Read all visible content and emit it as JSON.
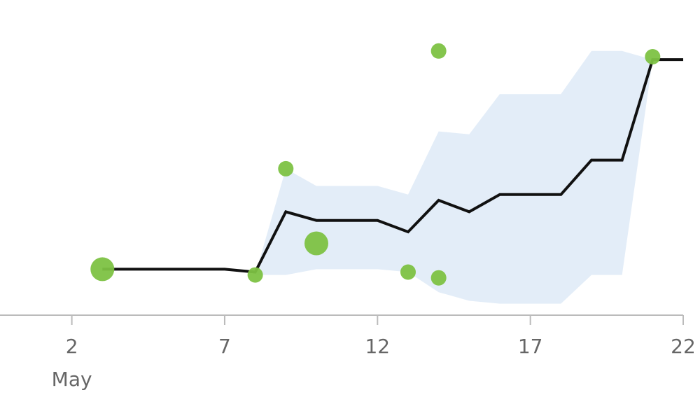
{
  "chart_data": {
    "type": "line",
    "xaxis": {
      "ticks": [
        {
          "value": 2,
          "label": "2"
        },
        {
          "value": 7,
          "label": "7"
        },
        {
          "value": 12,
          "label": "12"
        },
        {
          "value": 17,
          "label": "17"
        },
        {
          "value": 22,
          "label": "22"
        }
      ],
      "month_label": "May",
      "range": [
        -0.35,
        22
      ]
    },
    "yaxis": {
      "range": [
        0,
        100
      ]
    },
    "grid": false,
    "legend": "none",
    "colors": {
      "line": "#111111",
      "band": "#e3edf8",
      "points": "#7dc243",
      "axis": "#bbbbbb",
      "tick_text": "#666666"
    },
    "series": [
      {
        "type": "line",
        "x": [
          3,
          7,
          8,
          9,
          10,
          11,
          12,
          13,
          14,
          15,
          16,
          17,
          18,
          19,
          20,
          21,
          22
        ],
        "y": [
          16,
          16,
          15,
          36,
          33,
          33,
          33,
          29,
          40,
          36,
          42,
          42,
          42,
          54,
          54,
          89,
          89
        ]
      },
      {
        "type": "band",
        "x": [
          8,
          9,
          10,
          11,
          12,
          13,
          14,
          15,
          16,
          17,
          18,
          19,
          20,
          21
        ],
        "lower": [
          14,
          14,
          16,
          16,
          16,
          15,
          8,
          5,
          4,
          4,
          4,
          14,
          14,
          89
        ],
        "upper": [
          14,
          51,
          45,
          45,
          45,
          42,
          64,
          63,
          77,
          77,
          77,
          92,
          92,
          89
        ]
      },
      {
        "type": "scatter",
        "points": [
          {
            "x": 3,
            "y": 16,
            "size": 3
          },
          {
            "x": 8,
            "y": 14,
            "size": 1
          },
          {
            "x": 9,
            "y": 51,
            "size": 1
          },
          {
            "x": 10,
            "y": 25,
            "size": 3
          },
          {
            "x": 13,
            "y": 15,
            "size": 1
          },
          {
            "x": 14,
            "y": 92,
            "size": 1
          },
          {
            "x": 14,
            "y": 13,
            "size": 1
          },
          {
            "x": 21,
            "y": 90,
            "size": 1
          }
        ]
      }
    ]
  }
}
